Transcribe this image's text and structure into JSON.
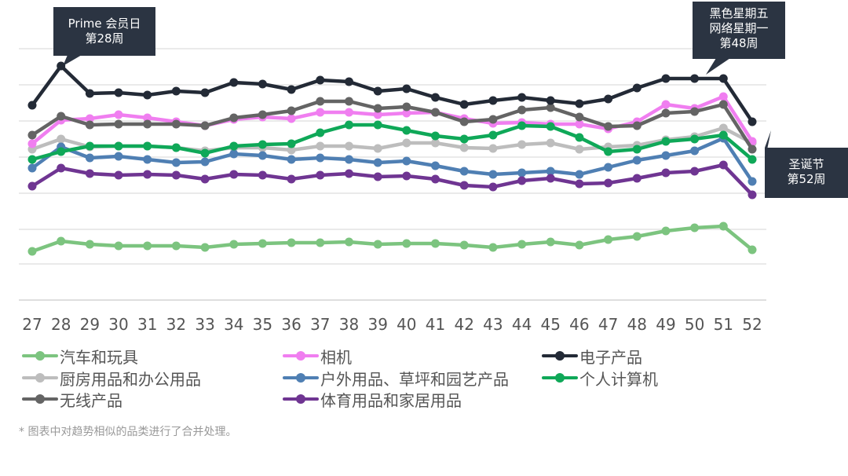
{
  "chart_data": {
    "type": "line",
    "x": [
      "27",
      "28",
      "29",
      "30",
      "31",
      "32",
      "33",
      "34",
      "35",
      "36",
      "37",
      "38",
      "39",
      "40",
      "41",
      "42",
      "43",
      "44",
      "45",
      "46",
      "47",
      "48",
      "49",
      "50",
      "51",
      "52"
    ],
    "grid": "horizontal",
    "legend_position": "bottom",
    "series": [
      {
        "name": "汽车和玩具",
        "color": "#7cc47f",
        "values": [
          320,
          307,
          311,
          313,
          313,
          313,
          315,
          311,
          310,
          309,
          309,
          308,
          311,
          310,
          310,
          312,
          315,
          311,
          308,
          312,
          305,
          301,
          294,
          290,
          288,
          318
        ]
      },
      {
        "name": "相机",
        "color": "#f07ef0",
        "values": [
          183,
          153,
          151,
          146,
          150,
          155,
          160,
          152,
          149,
          151,
          143,
          143,
          146,
          144,
          143,
          151,
          157,
          156,
          158,
          158,
          164,
          155,
          133,
          138,
          123,
          180
        ]
      },
      {
        "name": "电子产品",
        "color": "#232a36",
        "values": [
          134,
          84,
          119,
          118,
          121,
          116,
          118,
          105,
          107,
          114,
          102,
          104,
          116,
          113,
          124,
          133,
          128,
          124,
          128,
          132,
          126,
          112,
          100,
          100,
          100,
          155
        ]
      },
      {
        "name": "厨房用品和办公用品",
        "color": "#bdbdbd",
        "values": [
          190,
          177,
          187,
          186,
          186,
          188,
          192,
          188,
          188,
          191,
          186,
          186,
          189,
          182,
          182,
          188,
          189,
          184,
          182,
          190,
          187,
          185,
          178,
          174,
          163,
          182
        ]
      },
      {
        "name": "户外用品、草坪和园艺产品",
        "color": "#4f7fb3",
        "values": [
          214,
          187,
          201,
          199,
          203,
          207,
          206,
          196,
          198,
          203,
          201,
          203,
          207,
          205,
          211,
          218,
          222,
          220,
          218,
          222,
          213,
          204,
          198,
          192,
          176,
          231
        ]
      },
      {
        "name": "个人计算机",
        "color": "#0fa858",
        "values": [
          203,
          193,
          186,
          186,
          186,
          188,
          195,
          186,
          184,
          183,
          169,
          159,
          159,
          166,
          173,
          177,
          172,
          160,
          161,
          175,
          193,
          190,
          180,
          177,
          172,
          203
        ]
      },
      {
        "name": "无线产品",
        "color": "#646464",
        "values": [
          172,
          148,
          159,
          158,
          158,
          158,
          160,
          150,
          146,
          141,
          129,
          129,
          138,
          136,
          143,
          155,
          152,
          140,
          137,
          149,
          161,
          160,
          144,
          142,
          133,
          190
        ]
      },
      {
        "name": "体育用品和家居用品",
        "color": "#6f3592",
        "values": [
          237,
          214,
          221,
          223,
          222,
          223,
          228,
          222,
          223,
          228,
          223,
          221,
          225,
          224,
          228,
          236,
          238,
          230,
          227,
          234,
          233,
          227,
          220,
          218,
          210,
          248
        ]
      }
    ],
    "ylim": [
      382,
      62
    ],
    "annotations": [
      {
        "lines": [
          "Prime 会员日",
          "第28周"
        ],
        "x": "28"
      },
      {
        "lines": [
          "黑色星期五",
          "网络星期一",
          "第48周"
        ],
        "x": "48"
      },
      {
        "lines": [
          "圣诞节",
          "第52周"
        ],
        "x": "52"
      }
    ],
    "footnote": "* 图表中对趋势相似的品类进行了合并处理。"
  }
}
